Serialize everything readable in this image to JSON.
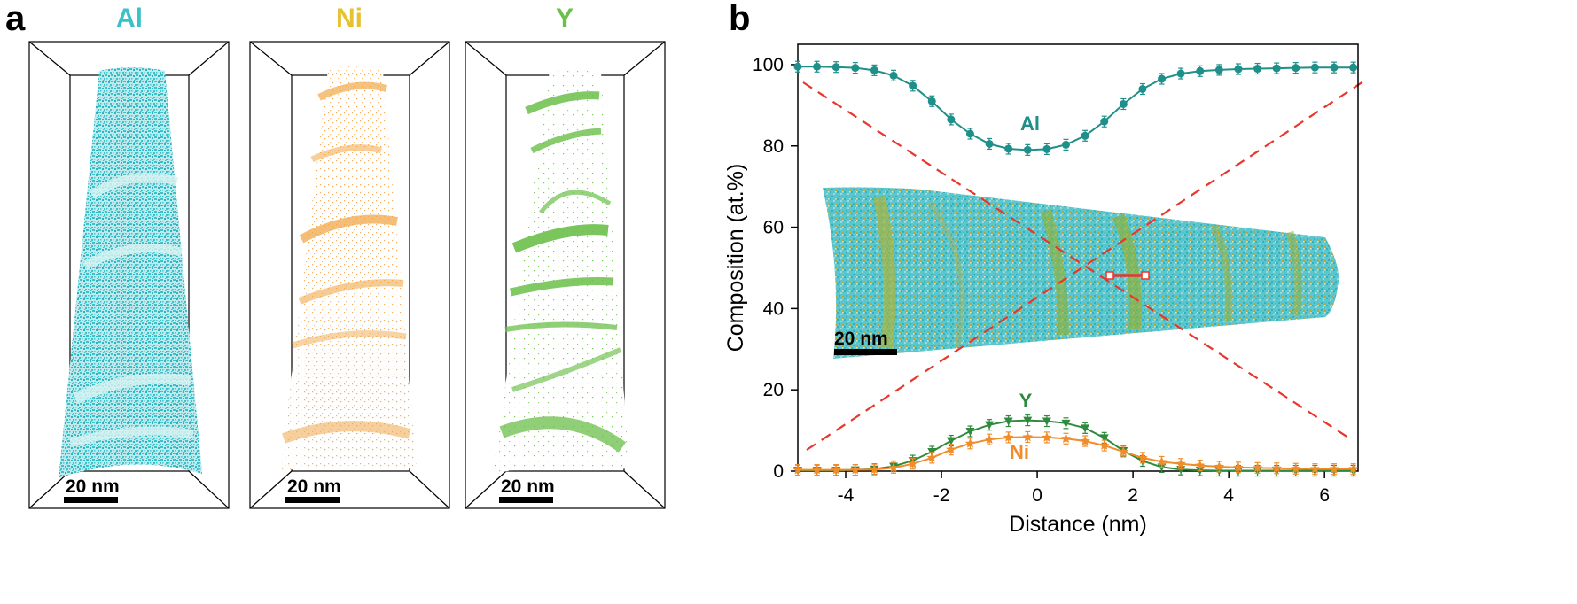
{
  "panels": {
    "a": {
      "letter": "a",
      "maps": [
        {
          "element": "Al",
          "color": "#3cc0c9",
          "scale_bar": "20 nm"
        },
        {
          "element": "Ni",
          "color": "#f0a84c",
          "title_color": "#e6c130",
          "scale_bar": "20 nm"
        },
        {
          "element": "Y",
          "color": "#6bbf4a",
          "scale_bar": "20 nm"
        }
      ]
    },
    "b": {
      "letter": "b",
      "inset_scale_bar": "20 nm"
    }
  },
  "chart_data": {
    "type": "line",
    "xlabel": "Distance (nm)",
    "ylabel": "Composition (at.%)",
    "xlim": [
      -5,
      6.7
    ],
    "ylim": [
      0,
      105
    ],
    "xticks": [
      -4,
      -2,
      0,
      2,
      4,
      6
    ],
    "yticks": [
      0,
      20,
      40,
      60,
      80,
      100
    ],
    "grid": false,
    "series": [
      {
        "name": "Al",
        "color": "#1f8f8a",
        "marker": "circle",
        "x": [
          -5,
          -4.6,
          -4.2,
          -3.8,
          -3.4,
          -3.0,
          -2.6,
          -2.2,
          -1.8,
          -1.4,
          -1.0,
          -0.6,
          -0.2,
          0.2,
          0.6,
          1.0,
          1.4,
          1.8,
          2.2,
          2.6,
          3.0,
          3.4,
          3.8,
          4.2,
          4.6,
          5.0,
          5.4,
          5.8,
          6.2,
          6.6
        ],
        "values": [
          99.5,
          99.5,
          99.4,
          99.2,
          98.6,
          97.3,
          94.8,
          91.0,
          86.5,
          83.0,
          80.5,
          79.3,
          79.0,
          79.2,
          80.3,
          82.5,
          86.0,
          90.3,
          94.0,
          96.5,
          97.8,
          98.4,
          98.7,
          98.9,
          99.0,
          99.1,
          99.2,
          99.3,
          99.3,
          99.3
        ]
      },
      {
        "name": "Y",
        "color": "#2e8b3e",
        "marker": "triangle-down",
        "x": [
          -5,
          -4.6,
          -4.2,
          -3.8,
          -3.4,
          -3.0,
          -2.6,
          -2.2,
          -1.8,
          -1.4,
          -1.0,
          -0.6,
          -0.2,
          0.2,
          0.6,
          1.0,
          1.4,
          1.8,
          2.2,
          2.6,
          3.0,
          3.4,
          3.8,
          4.2,
          4.6,
          5.0,
          5.4,
          5.8,
          6.2,
          6.6
        ],
        "values": [
          0.2,
          0.2,
          0.2,
          0.3,
          0.5,
          1.2,
          2.6,
          4.8,
          7.5,
          9.8,
          11.4,
          12.3,
          12.5,
          12.3,
          11.8,
          10.6,
          8.2,
          5.0,
          2.5,
          1.0,
          0.4,
          0.2,
          0.1,
          0.1,
          0.1,
          0.1,
          0.1,
          0.1,
          0.1,
          0.1
        ]
      },
      {
        "name": "Ni",
        "color": "#f08c2a",
        "marker": "star",
        "x": [
          -5,
          -4.6,
          -4.2,
          -3.8,
          -3.4,
          -3.0,
          -2.6,
          -2.2,
          -1.8,
          -1.4,
          -1.0,
          -0.6,
          -0.2,
          0.2,
          0.6,
          1.0,
          1.4,
          1.8,
          2.2,
          2.6,
          3.0,
          3.4,
          3.8,
          4.2,
          4.6,
          5.0,
          5.4,
          5.8,
          6.2,
          6.6
        ],
        "values": [
          0.3,
          0.3,
          0.3,
          0.3,
          0.4,
          0.8,
          1.8,
          3.3,
          5.3,
          6.8,
          7.8,
          8.3,
          8.4,
          8.3,
          8.0,
          7.4,
          6.3,
          4.8,
          3.3,
          2.3,
          1.8,
          1.4,
          1.1,
          0.9,
          0.8,
          0.7,
          0.6,
          0.5,
          0.5,
          0.5
        ]
      }
    ]
  }
}
